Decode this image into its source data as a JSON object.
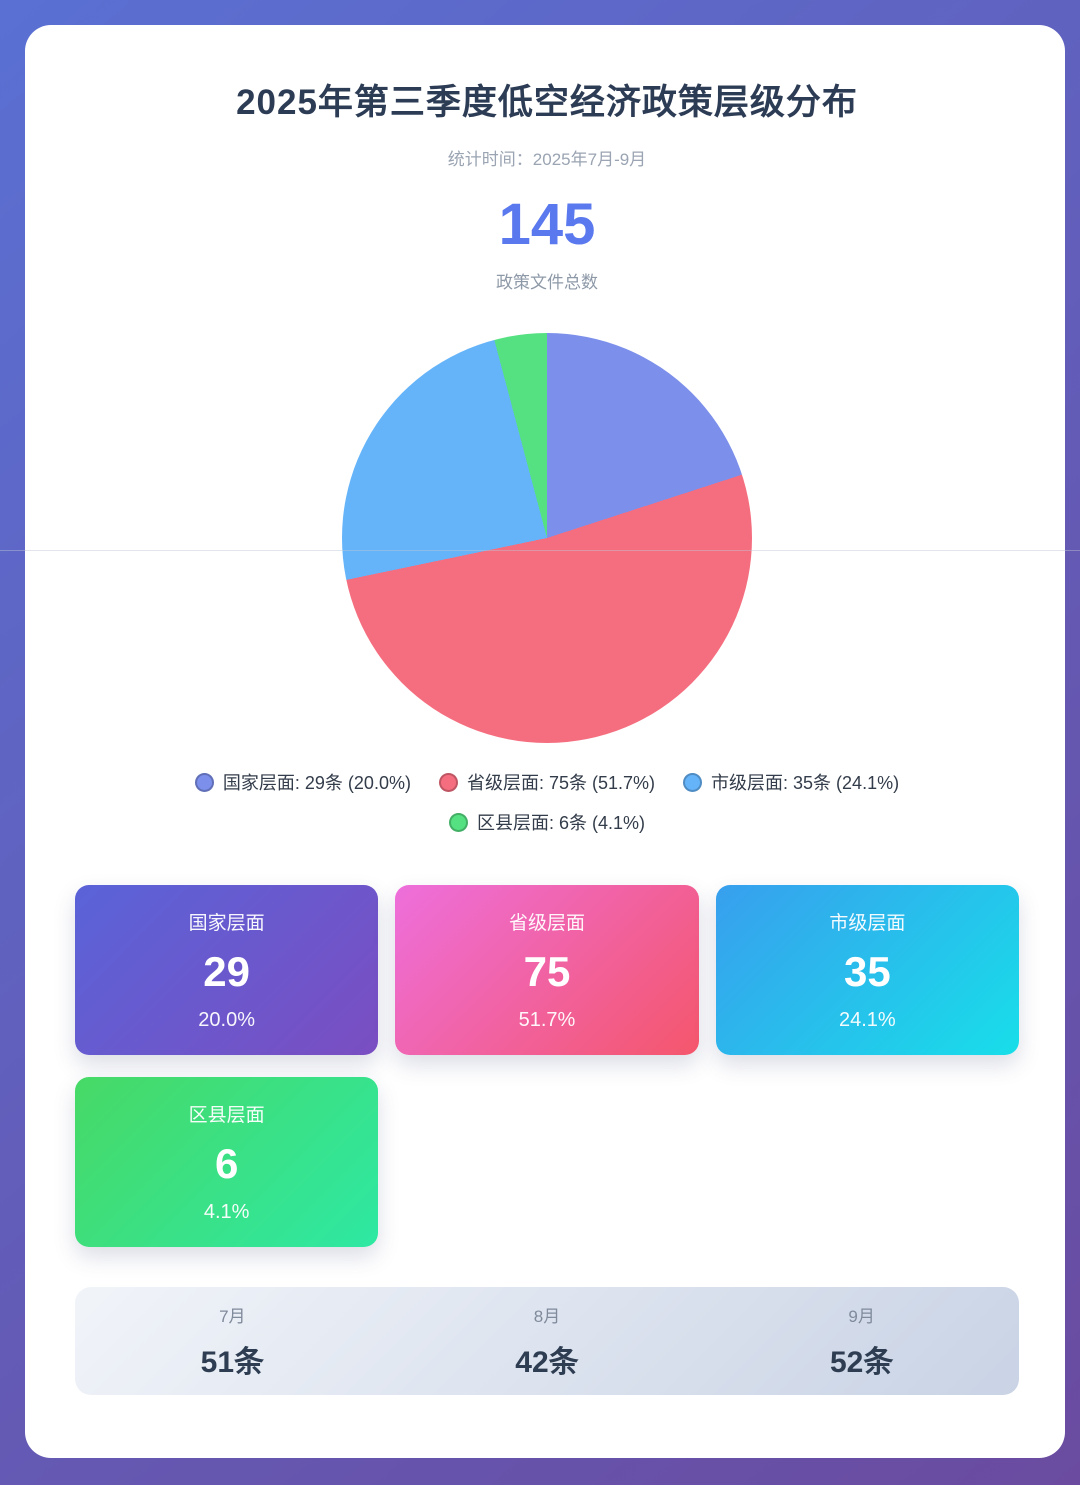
{
  "header": {
    "title": "2025年第三季度低空经济政策层级分布",
    "subtitle": "统计时间：2025年7月-9月"
  },
  "total": {
    "value": "145",
    "label": "政策文件总数"
  },
  "chart_data": {
    "type": "pie",
    "title": "2025年第三季度低空经济政策层级分布",
    "subtitle": "统计时间：2025年7月-9月",
    "total": 145,
    "total_label": "政策文件总数",
    "categories": [
      "国家层面",
      "省级层面",
      "市级层面",
      "区县层面"
    ],
    "values": [
      29,
      75,
      35,
      6
    ],
    "unit": "条",
    "percentages": [
      "20.0%",
      "51.7%",
      "24.1%",
      "4.1%"
    ],
    "colors": [
      "#7b8feb",
      "#f56e7f",
      "#65b4fa",
      "#55e182"
    ],
    "start_angle": "top",
    "direction": "clockwise",
    "legend_position": "bottom",
    "monthly": {
      "months": [
        "7月",
        "8月",
        "9月"
      ],
      "values": [
        51,
        42,
        52
      ]
    }
  },
  "legend": {
    "items": [
      {
        "label": "国家层面: 29条 (20.0%)"
      },
      {
        "label": "省级层面: 75条 (51.7%)"
      },
      {
        "label": "市级层面: 35条 (24.1%)"
      },
      {
        "label": "区县层面: 6条 (4.1%)"
      }
    ]
  },
  "cards": [
    {
      "title": "国家层面",
      "value": "29",
      "percent": "20.0%",
      "gradient": [
        "#5a63d8",
        "#7a4ec2"
      ]
    },
    {
      "title": "省级层面",
      "value": "75",
      "percent": "51.7%",
      "gradient": [
        "#ee6fdc",
        "#f4566b"
      ]
    },
    {
      "title": "市级层面",
      "value": "35",
      "percent": "24.1%",
      "gradient": [
        "#389fee",
        "#18dee9"
      ]
    },
    {
      "title": "区县层面",
      "value": "6",
      "percent": "4.1%",
      "gradient": [
        "#47d966",
        "#2ee8a3"
      ]
    }
  ],
  "months": [
    {
      "label": "7月",
      "value": "51条"
    },
    {
      "label": "8月",
      "value": "42条"
    },
    {
      "label": "9月",
      "value": "52条"
    }
  ],
  "theme": {
    "background_gradient": [
      "#5a70d3",
      "#6a4ba0"
    ],
    "card_background": "#ffffff",
    "title_color": "#2d3c55",
    "accent_color": "#5b79ee",
    "muted_text_color": "#9aa4b2",
    "month_bar_gradient": [
      "#f1f4f9",
      "#c9d3e5"
    ]
  }
}
